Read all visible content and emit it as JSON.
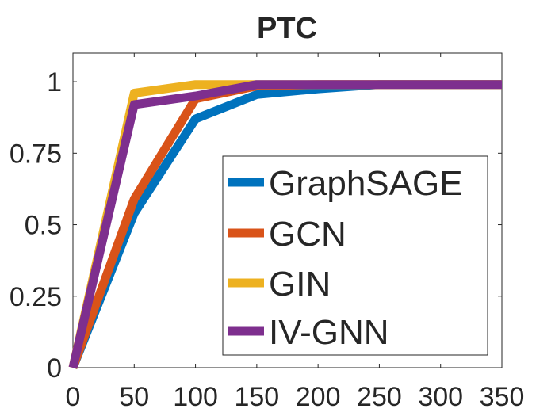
{
  "chart_data": {
    "type": "line",
    "title": "PTC",
    "xlabel": "",
    "ylabel": "",
    "xlim": [
      0,
      350
    ],
    "ylim": [
      0,
      1.1
    ],
    "xticks": [
      0,
      50,
      100,
      150,
      200,
      250,
      300,
      350
    ],
    "xtick_labels": [
      "0",
      "50",
      "100",
      "150",
      "200",
      "250",
      "300",
      "350"
    ],
    "yticks": [
      0,
      0.25,
      0.5,
      0.75,
      1
    ],
    "ytick_labels": [
      "0",
      "0.25",
      "0.5",
      "0.75",
      "1"
    ],
    "grid": false,
    "legend_position": "bottom-right",
    "series": [
      {
        "name": "GraphSAGE",
        "color": "#0072BD",
        "x": [
          0,
          50,
          100,
          150,
          200,
          250,
          300,
          350
        ],
        "y": [
          0,
          0.54,
          0.87,
          0.955,
          0.975,
          0.99,
          0.99,
          0.99
        ]
      },
      {
        "name": "GCN",
        "color": "#D95319",
        "x": [
          0,
          50,
          100,
          150,
          200,
          250,
          300,
          350
        ],
        "y": [
          0,
          0.59,
          0.94,
          0.985,
          0.99,
          0.99,
          0.99,
          0.99
        ]
      },
      {
        "name": "GIN",
        "color": "#EDB120",
        "x": [
          0,
          50,
          100,
          150,
          200,
          250,
          300,
          350
        ],
        "y": [
          0,
          0.96,
          0.99,
          0.99,
          0.99,
          0.99,
          0.99,
          0.99
        ]
      },
      {
        "name": "IV-GNN",
        "color": "#7E2F8E",
        "x": [
          0,
          50,
          100,
          150,
          200,
          250,
          300,
          350
        ],
        "y": [
          0,
          0.92,
          0.95,
          0.99,
          0.99,
          0.99,
          0.99,
          0.99
        ]
      }
    ]
  }
}
